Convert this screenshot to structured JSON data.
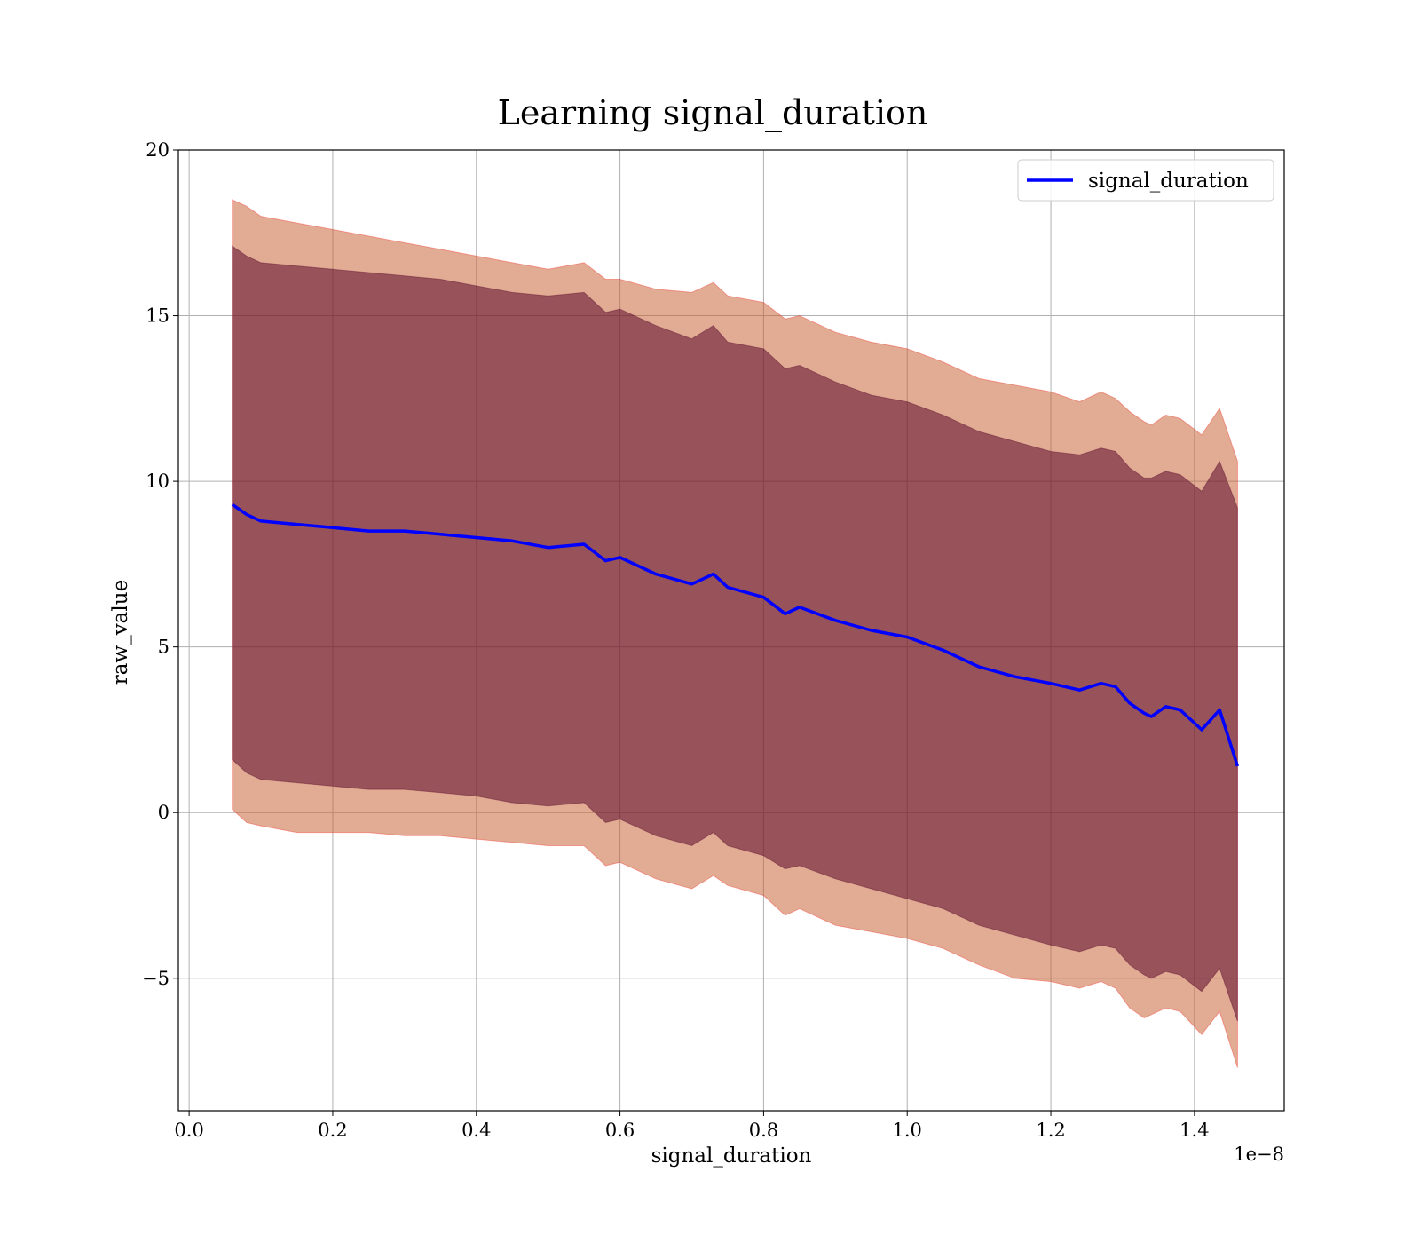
{
  "chart_data": {
    "type": "line",
    "title": "Learning signal_duration",
    "xlabel": "signal_duration",
    "ylabel": "raw_value",
    "x_offset_label": "1e−8",
    "xlim": [
      -1.5e-10,
      1.525e-08
    ],
    "ylim": [
      -9,
      20
    ],
    "x_ticks": [
      0.0,
      2e-09,
      4e-09,
      6e-09,
      8e-09,
      1e-08,
      1.2e-08,
      1.4e-08
    ],
    "x_tick_labels": [
      "0.0",
      "0.2",
      "0.4",
      "0.6",
      "0.8",
      "1.0",
      "1.2",
      "1.4"
    ],
    "y_ticks": [
      -5,
      0,
      5,
      10,
      15,
      20
    ],
    "y_tick_labels": [
      "−5",
      "0",
      "5",
      "10",
      "15",
      "20"
    ],
    "grid": true,
    "legend_position": "top-right",
    "colors": {
      "line": "#0000ff",
      "band_outer": "#ff0000",
      "band_inner": "#5a0a2a",
      "band_mid": "#a0a050"
    },
    "series": [
      {
        "name": "signal_duration",
        "x": [
          6e-10,
          8e-10,
          1e-09,
          1.5e-09,
          2e-09,
          2.5e-09,
          3e-09,
          3.5e-09,
          4e-09,
          4.5e-09,
          5e-09,
          5.5e-09,
          5.8e-09,
          6e-09,
          6.5e-09,
          7e-09,
          7.3e-09,
          7.5e-09,
          8e-09,
          8.3e-09,
          8.5e-09,
          9e-09,
          9.5e-09,
          1e-08,
          1.05e-08,
          1.08e-08,
          1.1e-08,
          1.15e-08,
          1.2e-08,
          1.24e-08,
          1.27e-08,
          1.29e-08,
          1.31e-08,
          1.33e-08,
          1.34e-08,
          1.36e-08,
          1.38e-08,
          1.41e-08,
          1.435e-08,
          1.46e-08
        ],
        "y": [
          9.3,
          9.0,
          8.8,
          8.7,
          8.6,
          8.5,
          8.5,
          8.4,
          8.3,
          8.2,
          8.0,
          8.1,
          7.6,
          7.7,
          7.2,
          6.9,
          7.2,
          6.8,
          6.5,
          6.0,
          6.2,
          5.8,
          5.5,
          5.3,
          4.9,
          4.6,
          4.4,
          4.1,
          3.9,
          3.7,
          3.9,
          3.8,
          3.3,
          3.0,
          2.9,
          3.2,
          3.1,
          2.5,
          3.1,
          1.4
        ],
        "band_outer_upper": [
          18.5,
          18.3,
          18.0,
          17.8,
          17.6,
          17.4,
          17.2,
          17.0,
          16.8,
          16.6,
          16.4,
          16.6,
          16.1,
          16.1,
          15.8,
          15.7,
          16.0,
          15.6,
          15.4,
          14.9,
          15.0,
          14.5,
          14.2,
          14.0,
          13.6,
          13.3,
          13.1,
          12.9,
          12.7,
          12.4,
          12.7,
          12.5,
          12.1,
          11.8,
          11.7,
          12.0,
          11.9,
          11.4,
          12.2,
          10.6
        ],
        "band_outer_lower": [
          0.1,
          -0.3,
          -0.4,
          -0.6,
          -0.6,
          -0.6,
          -0.7,
          -0.7,
          -0.8,
          -0.9,
          -1.0,
          -1.0,
          -1.6,
          -1.5,
          -2.0,
          -2.3,
          -1.9,
          -2.2,
          -2.5,
          -3.1,
          -2.9,
          -3.4,
          -3.6,
          -3.8,
          -4.1,
          -4.4,
          -4.6,
          -5.0,
          -5.1,
          -5.3,
          -5.1,
          -5.3,
          -5.9,
          -6.2,
          -6.1,
          -5.9,
          -6.0,
          -6.7,
          -6.0,
          -7.7
        ],
        "band_inner_upper": [
          17.1,
          16.8,
          16.6,
          16.5,
          16.4,
          16.3,
          16.2,
          16.1,
          15.9,
          15.7,
          15.6,
          15.7,
          15.1,
          15.2,
          14.7,
          14.3,
          14.7,
          14.2,
          14.0,
          13.4,
          13.5,
          13.0,
          12.6,
          12.4,
          12.0,
          11.7,
          11.5,
          11.2,
          10.9,
          10.8,
          11.0,
          10.9,
          10.4,
          10.1,
          10.1,
          10.3,
          10.2,
          9.7,
          10.6,
          9.2
        ],
        "band_inner_lower": [
          1.6,
          1.2,
          1.0,
          0.9,
          0.8,
          0.7,
          0.7,
          0.6,
          0.5,
          0.3,
          0.2,
          0.3,
          -0.3,
          -0.2,
          -0.7,
          -1.0,
          -0.6,
          -1.0,
          -1.3,
          -1.7,
          -1.6,
          -2.0,
          -2.3,
          -2.6,
          -2.9,
          -3.2,
          -3.4,
          -3.7,
          -4.0,
          -4.2,
          -4.0,
          -4.1,
          -4.6,
          -4.9,
          -5.0,
          -4.8,
          -4.9,
          -5.4,
          -4.7,
          -6.3
        ]
      }
    ]
  }
}
